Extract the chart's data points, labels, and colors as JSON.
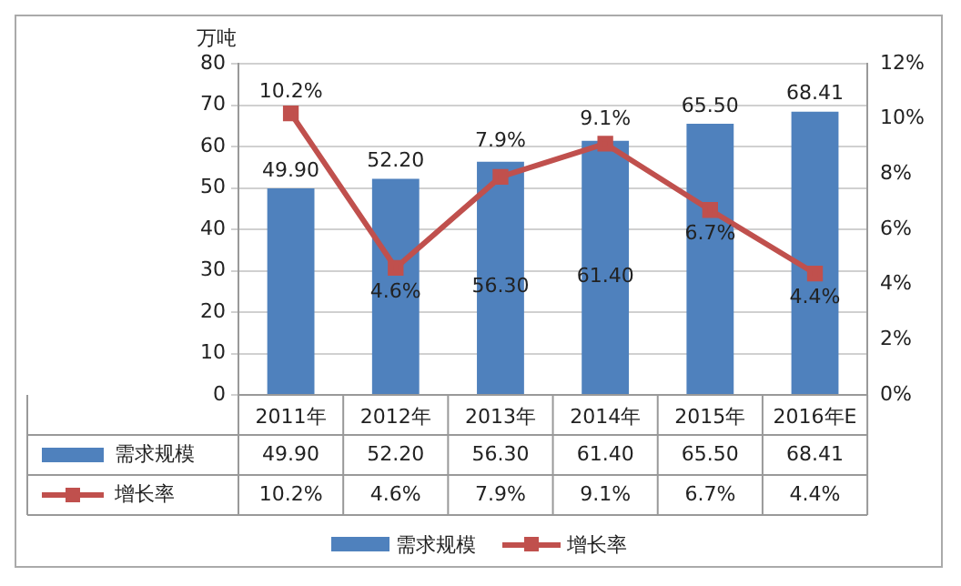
{
  "chart_data": {
    "type": "bar",
    "ylabel": "万吨",
    "categories": [
      "2011年",
      "2012年",
      "2013年",
      "2014年",
      "2015年",
      "2016年E"
    ],
    "series": [
      {
        "name": "需求规模",
        "color": "#4f81bd",
        "values": [
          49.9,
          52.2,
          56.3,
          61.4,
          65.5,
          68.41
        ],
        "value_labels": [
          "49.90",
          "52.20",
          "56.30",
          "61.40",
          "65.50",
          "68.41"
        ]
      },
      {
        "name": "增长率",
        "type": "line",
        "axis": "y2",
        "color": "#c0504d",
        "marker": "square",
        "values": [
          10.2,
          4.6,
          7.9,
          9.1,
          6.7,
          4.4
        ],
        "value_labels": [
          "10.2%",
          "4.6%",
          "7.9%",
          "9.1%",
          "6.7%",
          "4.4%"
        ]
      }
    ],
    "ylim": [
      0,
      80
    ],
    "yticks": [
      0,
      10,
      20,
      30,
      40,
      50,
      60,
      70,
      80
    ],
    "y2lim": [
      0,
      12
    ],
    "y2ticks": [
      {
        "value": 0,
        "label": "0%"
      },
      {
        "value": 2,
        "label": "2%"
      },
      {
        "value": 4,
        "label": "4%"
      },
      {
        "value": 6,
        "label": "6%"
      },
      {
        "value": 8,
        "label": "8%"
      },
      {
        "value": 10,
        "label": "10%"
      },
      {
        "value": 12,
        "label": "12%"
      }
    ],
    "grid": "y",
    "legend": "bottom",
    "data_labels": true
  }
}
